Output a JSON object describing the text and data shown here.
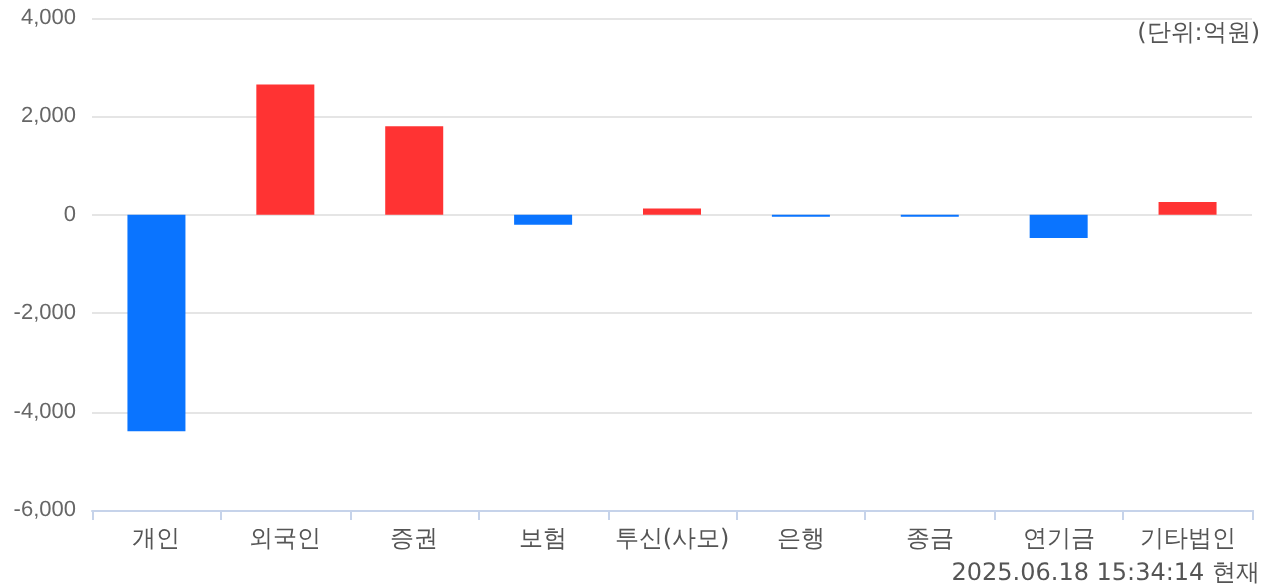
{
  "chart_data": {
    "type": "bar",
    "categories": [
      "개인",
      "외국인",
      "증권",
      "보험",
      "투신(사모)",
      "은행",
      "종금",
      "연기금",
      "기타법인"
    ],
    "values": [
      -4400,
      2650,
      1800,
      -200,
      130,
      -40,
      -40,
      -470,
      260
    ],
    "colors": [
      "#0a74ff",
      "#ff3333",
      "#ff3333",
      "#0a74ff",
      "#ff3333",
      "#0a74ff",
      "#0a74ff",
      "#0a74ff",
      "#ff3333"
    ],
    "ylim": [
      -6000,
      4000
    ],
    "yticks": [
      {
        "value": -6000,
        "label": "-6,000"
      },
      {
        "value": -4000,
        "label": "-4,000"
      },
      {
        "value": -2000,
        "label": "-2,000"
      },
      0,
      {
        "value": 2000,
        "label": "2,000"
      },
      {
        "value": 4000,
        "label": "4,000"
      }
    ],
    "grid": "y",
    "annotations": [
      "(단위:억원)",
      "2025.06.18 15:34:14 현재"
    ]
  }
}
